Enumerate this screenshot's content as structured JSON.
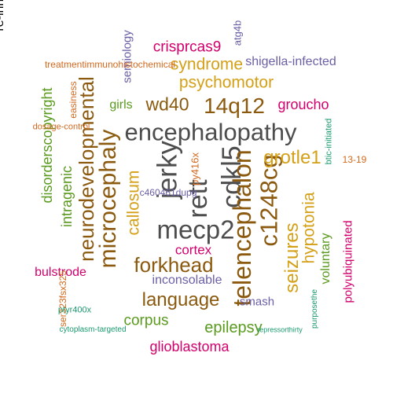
{
  "palette": {
    "gray": "#4d4d4d",
    "brown": "#8b5a0f",
    "gold": "#d4a017",
    "green": "#5a9a1e",
    "magenta": "#d1006c",
    "purple": "#6b5fa6",
    "orange": "#d2691e",
    "teal": "#1a9a6e"
  },
  "words": [
    {
      "text": "encephalopathy",
      "color": "gray",
      "v": false
    },
    {
      "text": "mecp2",
      "color": "gray",
      "v": false
    },
    {
      "text": "rett",
      "color": "gray",
      "v": true
    },
    {
      "text": "cdkl5",
      "color": "gray",
      "v": true
    },
    {
      "text": "jerky",
      "color": "gray",
      "v": true
    },
    {
      "text": "14q12",
      "color": "brown",
      "v": false
    },
    {
      "text": "wd40",
      "color": "brown",
      "v": false
    },
    {
      "text": "microcephaly",
      "color": "brown",
      "v": true
    },
    {
      "text": "neurodevelopmental",
      "color": "brown",
      "v": true
    },
    {
      "text": "telencephalon",
      "color": "brown",
      "v": true
    },
    {
      "text": "c1248cg",
      "color": "brown",
      "v": true
    },
    {
      "text": "forkhead",
      "color": "brown",
      "v": false
    },
    {
      "text": "language",
      "color": "brown",
      "v": false
    },
    {
      "text": "psychomotor",
      "color": "gold",
      "v": false
    },
    {
      "text": "syndrome",
      "color": "gold",
      "v": false
    },
    {
      "text": "grotle1",
      "color": "gold",
      "v": false
    },
    {
      "text": "callosum",
      "color": "gold",
      "v": true
    },
    {
      "text": "seizures",
      "color": "gold",
      "v": true
    },
    {
      "text": "hypotonia",
      "color": "gold",
      "v": true
    },
    {
      "text": "intragenic",
      "color": "green",
      "v": true
    },
    {
      "text": "disorderscopyright",
      "color": "green",
      "v": true
    },
    {
      "text": "girls",
      "color": "green",
      "v": false
    },
    {
      "text": "voluntary",
      "color": "green",
      "v": true
    },
    {
      "text": "epilepsy",
      "color": "green",
      "v": false
    },
    {
      "text": "corpus",
      "color": "green",
      "v": false
    },
    {
      "text": "crisprcas9",
      "color": "magenta",
      "v": false
    },
    {
      "text": "groucho",
      "color": "magenta",
      "v": false
    },
    {
      "text": "cortex",
      "color": "magenta",
      "v": false
    },
    {
      "text": "bulstrode",
      "color": "magenta",
      "v": false
    },
    {
      "text": "glioblastoma",
      "color": "magenta",
      "v": false
    },
    {
      "text": "polyubiquinated",
      "color": "magenta",
      "v": true
    },
    {
      "text": "shigella-infected",
      "color": "purple",
      "v": false
    },
    {
      "text": "semiology",
      "color": "purple",
      "v": true
    },
    {
      "text": "inconsolable",
      "color": "purple",
      "v": false
    },
    {
      "text": "smash",
      "color": "purple",
      "v": false
    },
    {
      "text": "c460461dupg",
      "color": "purple",
      "v": false
    },
    {
      "text": "atg4b",
      "color": "purple",
      "v": true
    },
    {
      "text": "treatmentimmunohistochemical",
      "color": "orange",
      "v": false
    },
    {
      "text": "easiness",
      "color": "orange",
      "v": true
    },
    {
      "text": "py416x",
      "color": "orange",
      "v": true
    },
    {
      "text": "13-19",
      "color": "orange",
      "v": false
    },
    {
      "text": "ser323fsx325",
      "color": "orange",
      "v": true
    },
    {
      "text": "dosage-control",
      "color": "orange",
      "v": false
    },
    {
      "text": "btic-initiated",
      "color": "teal",
      "v": true
    },
    {
      "text": "ptyr400x",
      "color": "teal",
      "v": false
    },
    {
      "text": "cytoplasm-targeted",
      "color": "teal",
      "v": false
    },
    {
      "text": "repressorthirty",
      "color": "teal",
      "v": false
    },
    {
      "text": "purposethe",
      "color": "teal",
      "v": true
    },
    {
      "text": "re-inhibited",
      "color": "teal",
      "v": true
    }
  ]
}
